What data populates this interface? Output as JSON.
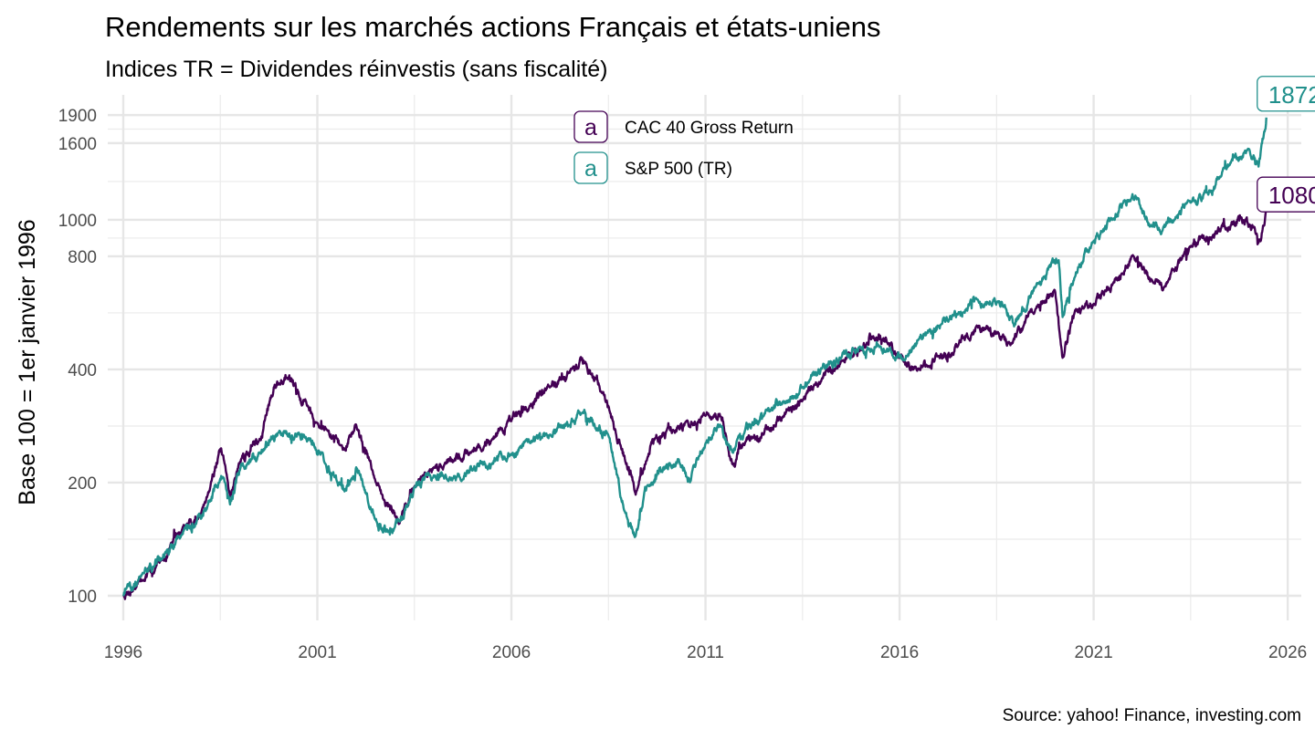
{
  "chart_data": {
    "type": "line",
    "title": "Rendements sur les marchés actions Français et états-uniens",
    "subtitle": "Indices TR = Dividendes réinvestis (sans fiscalité)",
    "xlabel": "",
    "ylabel": "Base 100 = 1er janvier 1996",
    "caption": "Source: yahoo! Finance, investing.com",
    "y_scale": "log",
    "xlim": [
      1995.6,
      2026.35
    ],
    "ylim": [
      86,
      2150
    ],
    "x_ticks": [
      1996,
      2001,
      2006,
      2011,
      2016,
      2021,
      2026
    ],
    "x_tick_labels": [
      "1996",
      "2001",
      "2006",
      "2011",
      "2016",
      "2021",
      "2026"
    ],
    "y_ticks": [
      100,
      200,
      400,
      800,
      1000,
      1600,
      1900
    ],
    "y_tick_labels": [
      "100",
      "200",
      "400",
      "800",
      "1000",
      "1600",
      "1900"
    ],
    "grid": true,
    "legend_position": "top-center",
    "series": [
      {
        "name": "CAC 40 Gross Return",
        "color": "#440154",
        "end_label": "1080",
        "x": [
          1996.0,
          1996.5,
          1997.0,
          1997.5,
          1998.0,
          1998.5,
          1998.75,
          1999.0,
          1999.5,
          1999.9,
          2000.2,
          2000.7,
          2001.0,
          2001.7,
          2002.0,
          2002.5,
          2003.1,
          2003.5,
          2004.0,
          2004.5,
          2005.0,
          2005.5,
          2006.0,
          2006.5,
          2007.0,
          2007.5,
          2007.9,
          2008.5,
          2009.2,
          2009.6,
          2010.0,
          2010.5,
          2011.0,
          2011.4,
          2011.7,
          2012.0,
          2012.5,
          2013.0,
          2013.5,
          2014.0,
          2014.5,
          2015.0,
          2015.3,
          2015.7,
          2016.1,
          2016.5,
          2017.0,
          2017.5,
          2018.0,
          2018.9,
          2019.5,
          2020.0,
          2020.2,
          2020.5,
          2021.0,
          2021.5,
          2022.0,
          2022.5,
          2022.8,
          2023.5,
          2024.0,
          2024.4,
          2024.8,
          2025.1,
          2025.3,
          2025.45
        ],
        "y": [
          100,
          110,
          125,
          148,
          165,
          245,
          185,
          225,
          260,
          365,
          380,
          330,
          290,
          245,
          285,
          200,
          155,
          195,
          220,
          228,
          245,
          260,
          290,
          325,
          360,
          390,
          420,
          320,
          185,
          255,
          275,
          290,
          300,
          300,
          225,
          250,
          268,
          300,
          330,
          380,
          420,
          450,
          490,
          465,
          420,
          400,
          430,
          460,
          520,
          470,
          580,
          650,
          430,
          560,
          600,
          680,
          800,
          690,
          660,
          850,
          900,
          940,
          1020,
          960,
          880,
          1080
        ]
      },
      {
        "name": "S&P 500 (TR)",
        "color": "#21908C",
        "end_label": "1872",
        "x": [
          1996.0,
          1996.5,
          1997.0,
          1997.5,
          1998.0,
          1998.5,
          1998.75,
          1999.0,
          1999.5,
          2000.0,
          2000.7,
          2001.2,
          2001.7,
          2002.0,
          2002.5,
          2002.8,
          2003.2,
          2003.5,
          2004.0,
          2004.5,
          2005.0,
          2005.5,
          2006.0,
          2006.5,
          2007.0,
          2007.8,
          2008.5,
          2008.9,
          2009.2,
          2009.5,
          2010.0,
          2010.3,
          2010.6,
          2011.0,
          2011.4,
          2011.7,
          2012.0,
          2012.5,
          2013.0,
          2013.5,
          2014.0,
          2014.5,
          2015.0,
          2015.5,
          2016.1,
          2016.5,
          2017.0,
          2017.5,
          2018.0,
          2018.7,
          2018.95,
          2019.5,
          2020.1,
          2020.2,
          2020.5,
          2021.0,
          2021.5,
          2022.0,
          2022.5,
          2022.8,
          2023.5,
          2024.0,
          2024.5,
          2025.0,
          2025.25,
          2025.45
        ],
        "y": [
          100,
          115,
          125,
          145,
          160,
          205,
          175,
          215,
          240,
          270,
          265,
          225,
          190,
          220,
          160,
          150,
          160,
          195,
          210,
          205,
          215,
          225,
          240,
          255,
          270,
          305,
          265,
          170,
          145,
          195,
          225,
          230,
          200,
          255,
          280,
          240,
          270,
          300,
          330,
          360,
          400,
          430,
          455,
          460,
          425,
          480,
          520,
          560,
          610,
          590,
          520,
          660,
          780,
          550,
          700,
          880,
          1000,
          1180,
          960,
          960,
          1110,
          1200,
          1400,
          1550,
          1380,
          1872
        ]
      }
    ]
  }
}
